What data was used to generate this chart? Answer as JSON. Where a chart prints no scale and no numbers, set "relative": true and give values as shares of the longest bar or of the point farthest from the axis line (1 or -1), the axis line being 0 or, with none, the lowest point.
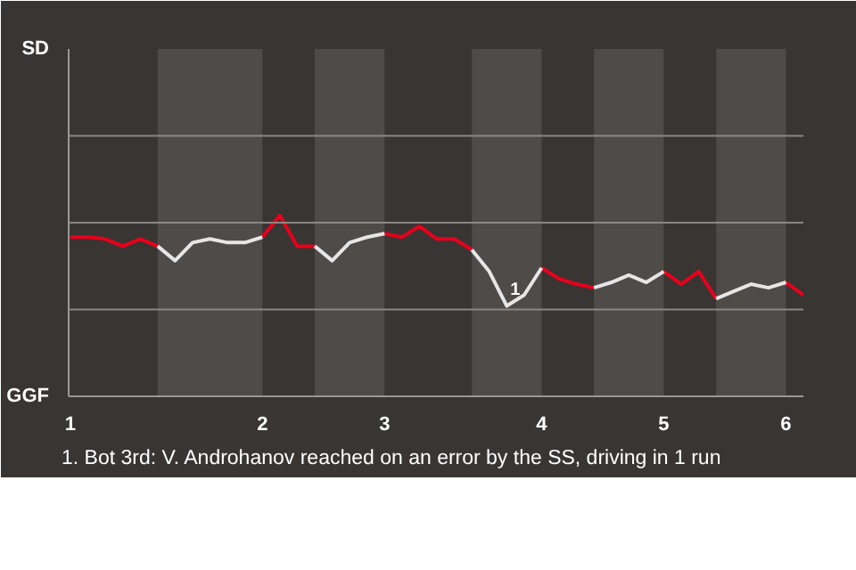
{
  "chart_data": {
    "type": "line",
    "relative": true,
    "categories": [
      "1",
      null,
      null,
      null,
      null,
      null,
      null,
      null,
      null,
      null,
      null,
      "2",
      null,
      null,
      null,
      null,
      null,
      null,
      "3",
      null,
      null,
      null,
      null,
      null,
      null,
      null,
      null,
      "4",
      null,
      null,
      null,
      null,
      null,
      null,
      "5",
      null,
      null,
      null,
      null,
      null,
      null,
      "6",
      null
    ],
    "marker": "none",
    "line_style": "solid",
    "ref_lines": [
      {
        "axis": "y",
        "value": 0.48,
        "color": "#8a8886"
      },
      {
        "axis": "y",
        "value": 0.96,
        "color": "#8a8886"
      },
      {
        "axis": "y",
        "value": 1.44,
        "color": "#8a8886"
      }
    ],
    "series": [
      {
        "color": "#e8001c",
        "values": [
          0.88,
          0.88,
          0.87,
          0.83,
          0.87,
          0.83,
          null,
          null,
          null,
          null,
          null,
          0.88,
          1,
          0.83,
          0.83,
          null,
          null,
          null,
          0.9,
          0.88,
          0.94,
          0.87,
          0.87,
          0.81,
          null,
          null,
          null,
          0.71,
          0.65,
          0.62,
          0.6,
          null,
          null,
          null,
          0.69,
          0.62,
          0.69,
          0.54,
          null,
          null,
          null,
          0.63,
          0.56
        ]
      },
      {
        "color": "#e6e6e6",
        "values": [
          null,
          null,
          null,
          null,
          null,
          0.83,
          0.75,
          0.85,
          0.87,
          0.85,
          0.85,
          0.88,
          null,
          null,
          0.83,
          0.75,
          0.85,
          0.88,
          0.9,
          null,
          null,
          null,
          null,
          0.81,
          0.69,
          0.5,
          0.56,
          0.71,
          null,
          null,
          0.6,
          0.63,
          0.67,
          0.63,
          0.69,
          null,
          null,
          0.54,
          0.58,
          0.62,
          0.6,
          0.63,
          null
        ]
      }
    ],
    "annotations": [
      "SD",
      "GGF",
      {
        "text": "1",
        "y": 0.5
      },
      "1. Bot 3rd: V. Androhanov reached on an error by the SS, driving in 1 run"
    ]
  }
}
